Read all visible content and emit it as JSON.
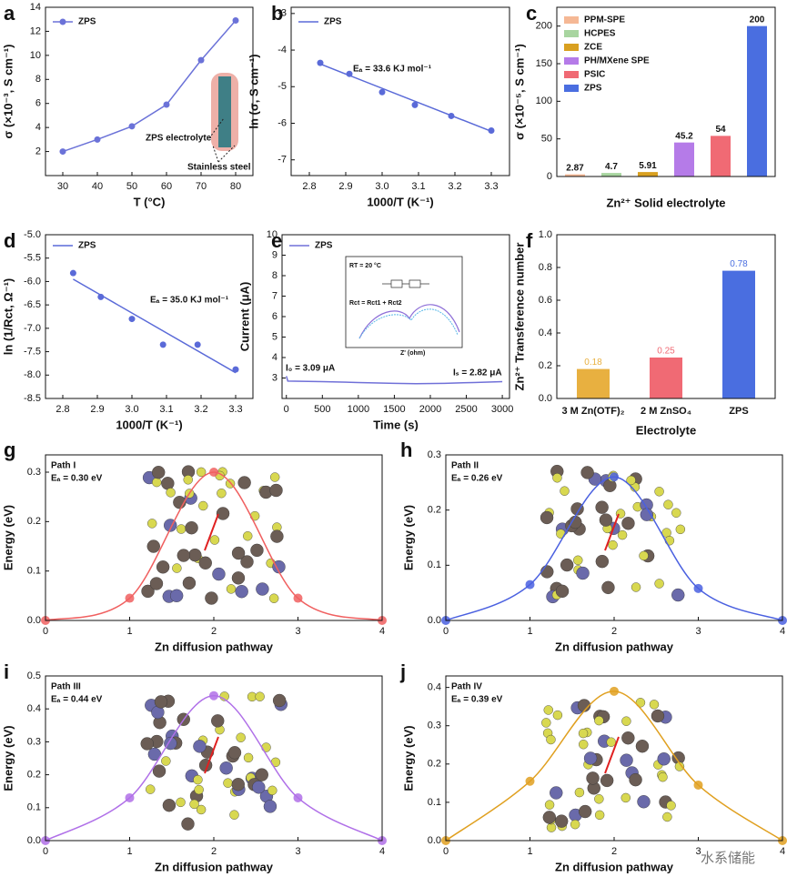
{
  "chart_data": [
    {
      "type": "line",
      "panel": "a",
      "xlabel": "T (°C)",
      "ylabel": "σ (×10⁻³, S cm⁻¹)",
      "x": [
        30,
        40,
        50,
        60,
        70,
        80
      ],
      "series": [
        {
          "name": "ZPS",
          "color": "#6b72d8",
          "marker": true,
          "values": [
            2.0,
            3.0,
            4.1,
            5.9,
            9.6,
            12.9
          ]
        }
      ],
      "xlim": [
        25,
        85
      ],
      "xticks": [
        30,
        40,
        50,
        60,
        70,
        80
      ],
      "ylim": [
        0,
        14
      ],
      "yticks": [
        2,
        4,
        6,
        8,
        10,
        12,
        14
      ],
      "legend": "upper left",
      "annotations": [
        "ZPS electrolyte",
        "Stainless steel"
      ]
    },
    {
      "type": "scatter",
      "panel": "b",
      "xlabel": "1000/T (K⁻¹)",
      "ylabel": "ln (σ, S cm⁻¹)",
      "x": [
        2.83,
        2.91,
        3.0,
        3.09,
        3.19,
        3.3
      ],
      "series": [
        {
          "name": "ZPS",
          "color": "#5a6ad8",
          "values": [
            -4.35,
            -4.65,
            -5.15,
            -5.5,
            -5.8,
            -6.2
          ]
        }
      ],
      "fit_line": {
        "x": [
          2.83,
          3.3
        ],
        "values": [
          -4.38,
          -6.22
        ]
      },
      "xlim": [
        2.75,
        3.35
      ],
      "xticks": [
        2.8,
        2.9,
        {
          "value": 3,
          "label": "3.0"
        },
        3.1,
        3.2,
        3.3
      ],
      "ylim": [
        -7.43,
        -2.83
      ],
      "yticks": [
        -3,
        -4,
        -5,
        -6,
        -7
      ],
      "legend": "upper left",
      "annotations": [
        "Eₐ = 33.6 KJ mol⁻¹"
      ]
    },
    {
      "type": "bar",
      "panel": "c",
      "xlabel": "Zn²⁺ Solid electrolyte",
      "ylabel": "σ (×10⁻⁵, S cm⁻¹)",
      "categories": [
        "PPM-SPE",
        "HCPES",
        "ZCE",
        "PH/MXene SPE",
        "PSIC",
        "ZPS"
      ],
      "values": [
        2.87,
        4.7,
        5.91,
        45.2,
        54,
        200
      ],
      "colors": [
        "#f5b895",
        "#a8d5a0",
        "#d9a020",
        "#b57be8",
        "#f06a74",
        "#4a6ee0"
      ],
      "ylim": [
        0,
        225
      ],
      "yticks": [
        0,
        50,
        100,
        150,
        200
      ],
      "legend": "upper left"
    },
    {
      "type": "scatter",
      "panel": "d",
      "xlabel": "1000/T (K⁻¹)",
      "ylabel": "ln (1/Rct, Ω⁻¹)",
      "x": [
        2.83,
        2.91,
        3.0,
        3.09,
        3.19,
        3.3
      ],
      "series": [
        {
          "name": "ZPS",
          "color": "#5a6ad8",
          "values": [
            -5.82,
            -6.33,
            -6.8,
            -7.35,
            -7.35,
            -7.88
          ]
        }
      ],
      "fit_line": {
        "x": [
          2.83,
          3.3
        ],
        "values": [
          -5.95,
          -7.95
        ]
      },
      "xlim": [
        2.75,
        3.35
      ],
      "xticks": [
        2.8,
        2.9,
        {
          "value": 3,
          "label": "3.0"
        },
        3.1,
        3.2,
        3.3
      ],
      "ylim": [
        -8.5,
        -5.0
      ],
      "yticks": [
        {
          "value": -5,
          "label": "-5.0"
        },
        -5.5,
        {
          "value": -6,
          "label": "-6.0"
        },
        -6.5,
        {
          "value": -7,
          "label": "-7.0"
        },
        -7.5,
        {
          "value": -8,
          "label": "-8.0"
        },
        -8.5
      ],
      "legend": "upper left",
      "annotations": [
        "Eₐ = 35.0 KJ mol⁻¹"
      ]
    },
    {
      "type": "line",
      "panel": "e",
      "xlabel": "Time (s)",
      "ylabel": "Current (μA)",
      "x": [
        0,
        20,
        500,
        1000,
        1500,
        1800,
        2200,
        2600,
        3000
      ],
      "series": [
        {
          "name": "ZPS",
          "color": "#7070d8",
          "values": [
            3.09,
            2.85,
            2.82,
            2.78,
            2.74,
            2.72,
            2.74,
            2.78,
            2.82
          ]
        }
      ],
      "xlim": [
        -60,
        3100
      ],
      "xticks": [
        0,
        500,
        1000,
        1500,
        2000,
        2500,
        3000
      ],
      "ylim": [
        2,
        10
      ],
      "yticks": [
        3,
        4,
        5,
        6,
        7,
        8,
        9,
        10
      ],
      "legend": "upper left",
      "annotations": [
        "I₀ = 3.09 μA",
        "Iₛ = 2.82 μA",
        "RT = 20 °C",
        "Rct = Rct1 + Rct2",
        "Z' (ohm)"
      ]
    },
    {
      "type": "bar",
      "panel": "f",
      "xlabel": "Electrolyte",
      "ylabel": "Zn²⁺ Transference number",
      "categories": [
        "3 M Zn(OTF)₂",
        "2 M ZnSO₄",
        "ZPS"
      ],
      "values": [
        0.18,
        0.25,
        0.78
      ],
      "colors": [
        "#e8b040",
        "#f06a74",
        "#4a6ee0"
      ],
      "ylim": [
        0,
        1.0
      ],
      "yticks": [
        {
          "value": 0,
          "label": "0.0"
        },
        0.2,
        0.4,
        0.6,
        0.8,
        {
          "value": 1,
          "label": "1.0"
        }
      ]
    },
    {
      "type": "spline",
      "panel": "g",
      "xlabel": "Zn diffusion pathway",
      "ylabel": "Energy (eV)",
      "x": [
        0,
        1,
        2,
        3,
        4
      ],
      "values": [
        0,
        0.045,
        0.3,
        0.045,
        0
      ],
      "color": "#f06060",
      "xlim": [
        0,
        4
      ],
      "xticks": [
        0,
        1,
        2,
        3,
        4
      ],
      "ylim": [
        0,
        0.335
      ],
      "yticks": [
        {
          "value": 0,
          "label": "0.0"
        },
        0.1,
        0.2,
        0.3
      ],
      "annotations": [
        "Path I",
        "Eₐ = 0.30 eV"
      ]
    },
    {
      "type": "spline",
      "panel": "h",
      "xlabel": "Zn diffusion pathway",
      "ylabel": "Energy (eV)",
      "x": [
        0,
        1,
        2,
        3,
        4
      ],
      "values": [
        0,
        0.065,
        0.26,
        0.058,
        0
      ],
      "color": "#4a60e0",
      "xlim": [
        0,
        4
      ],
      "xticks": [
        0,
        1,
        2,
        3,
        4
      ],
      "ylim": [
        0,
        0.3
      ],
      "yticks": [
        {
          "value": 0,
          "label": "0.0"
        },
        0.1,
        0.2,
        0.3
      ],
      "annotations": [
        "Path II",
        "Eₐ = 0.26 eV"
      ]
    },
    {
      "type": "spline",
      "panel": "i",
      "xlabel": "Zn diffusion pathway",
      "ylabel": "Energy (eV)",
      "x": [
        0,
        1,
        2,
        3,
        4
      ],
      "values": [
        0,
        0.13,
        0.44,
        0.13,
        0
      ],
      "color": "#b070e8",
      "xlim": [
        0,
        4
      ],
      "xticks": [
        0,
        1,
        2,
        3,
        4
      ],
      "ylim": [
        0,
        0.5
      ],
      "yticks": [
        {
          "value": 0,
          "label": "0.0"
        },
        0.1,
        0.2,
        0.3,
        0.4,
        0.5
      ],
      "annotations": [
        "Path III",
        "Eₐ = 0.44 eV"
      ]
    },
    {
      "type": "spline",
      "panel": "j",
      "xlabel": "Zn diffusion pathway",
      "ylabel": "Energy (eV)",
      "x": [
        0,
        1,
        2,
        3,
        4
      ],
      "values": [
        0,
        0.155,
        0.39,
        0.145,
        0
      ],
      "color": "#e0a020",
      "xlim": [
        0,
        4
      ],
      "xticks": [
        0,
        1,
        2,
        3,
        4
      ],
      "ylim": [
        0,
        0.43
      ],
      "yticks": [
        {
          "value": 0,
          "label": "0.0"
        },
        0.1,
        0.2,
        0.3,
        0.4
      ],
      "annotations": [
        "Path IV",
        "Eₐ = 0.39 eV"
      ]
    }
  ],
  "watermark": "水系储能"
}
